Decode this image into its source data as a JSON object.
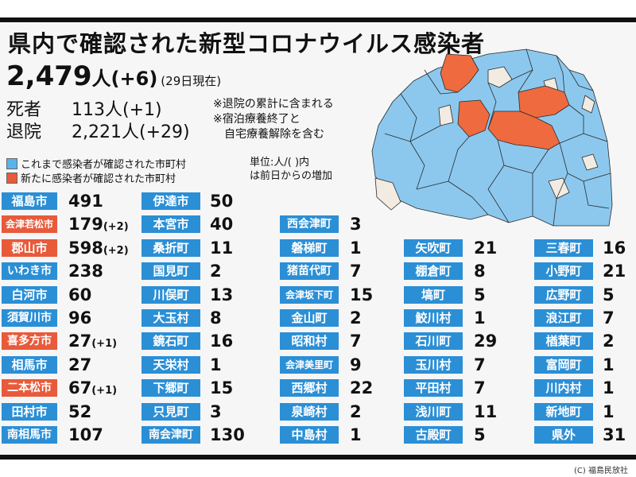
{
  "title": "県内で確認された新型コロナウイルス感染者",
  "total": {
    "count": "2,479",
    "unit": "人",
    "delta": "(+6)",
    "date": "(29日現在)"
  },
  "deaths": {
    "label": "死者",
    "value": "113人(+1)"
  },
  "discharged": {
    "label": "退院",
    "value": "2,221人(+29)"
  },
  "notes": [
    "※退院の累計に含まれる",
    "※宿泊療養終了と",
    "　自宅療養解除を含む"
  ],
  "legend": [
    {
      "label": "これまで感染者が確認された市町村",
      "color": "#5bb3ea"
    },
    {
      "label": "新たに感染者が確認された市町村",
      "color": "#e85a3a"
    }
  ],
  "unit_note": [
    "単位:人/( )内",
    "は前日からの増加"
  ],
  "columns": [
    [
      {
        "name": "福島市",
        "value": "491",
        "color": "blue"
      },
      {
        "name": "会津若松市",
        "value": "179",
        "delta": "(+2)",
        "color": "red"
      },
      {
        "name": "郡山市",
        "value": "598",
        "delta": "(+2)",
        "color": "red"
      },
      {
        "name": "いわき市",
        "value": "238",
        "color": "blue"
      },
      {
        "name": "白河市",
        "value": "60",
        "color": "blue"
      },
      {
        "name": "須賀川市",
        "value": "96",
        "color": "blue"
      },
      {
        "name": "喜多方市",
        "value": "27",
        "delta": "(+1)",
        "color": "red"
      },
      {
        "name": "相馬市",
        "value": "27",
        "color": "blue"
      },
      {
        "name": "二本松市",
        "value": "67",
        "delta": "(+1)",
        "color": "red"
      },
      {
        "name": "田村市",
        "value": "52",
        "color": "blue"
      },
      {
        "name": "南相馬市",
        "value": "107",
        "color": "blue"
      }
    ],
    [
      {
        "name": "伊達市",
        "value": "50",
        "color": "blue"
      },
      {
        "name": "本宮市",
        "value": "40",
        "color": "blue"
      },
      {
        "name": "桑折町",
        "value": "11",
        "color": "blue"
      },
      {
        "name": "国見町",
        "value": "2",
        "color": "blue"
      },
      {
        "name": "川俣町",
        "value": "13",
        "color": "blue"
      },
      {
        "name": "大玉村",
        "value": "8",
        "color": "blue"
      },
      {
        "name": "鏡石町",
        "value": "16",
        "color": "blue"
      },
      {
        "name": "天栄村",
        "value": "1",
        "color": "blue"
      },
      {
        "name": "下郷町",
        "value": "15",
        "color": "blue"
      },
      {
        "name": "只見町",
        "value": "3",
        "color": "blue"
      },
      {
        "name": "南会津町",
        "value": "130",
        "color": "blue"
      }
    ],
    [
      {
        "name": "西会津町",
        "value": "3",
        "color": "blue"
      },
      {
        "name": "磐梯町",
        "value": "1",
        "color": "blue"
      },
      {
        "name": "猪苗代町",
        "value": "7",
        "color": "blue"
      },
      {
        "name": "会津坂下町",
        "value": "15",
        "color": "blue"
      },
      {
        "name": "金山町",
        "value": "2",
        "color": "blue"
      },
      {
        "name": "昭和村",
        "value": "7",
        "color": "blue"
      },
      {
        "name": "会津美里町",
        "value": "9",
        "color": "blue"
      },
      {
        "name": "西郷村",
        "value": "22",
        "color": "blue"
      },
      {
        "name": "泉崎村",
        "value": "2",
        "color": "blue"
      },
      {
        "name": "中島村",
        "value": "1",
        "color": "blue"
      }
    ],
    [
      {
        "name": "矢吹町",
        "value": "21",
        "color": "blue"
      },
      {
        "name": "棚倉町",
        "value": "8",
        "color": "blue"
      },
      {
        "name": "塙町",
        "value": "5",
        "color": "blue"
      },
      {
        "name": "鮫川村",
        "value": "1",
        "color": "blue"
      },
      {
        "name": "石川町",
        "value": "29",
        "color": "blue"
      },
      {
        "name": "玉川村",
        "value": "7",
        "color": "blue"
      },
      {
        "name": "平田村",
        "value": "7",
        "color": "blue"
      },
      {
        "name": "浅川町",
        "value": "11",
        "color": "blue"
      },
      {
        "name": "古殿町",
        "value": "5",
        "color": "blue"
      }
    ],
    [
      {
        "name": "三春町",
        "value": "16",
        "color": "blue"
      },
      {
        "name": "小野町",
        "value": "21",
        "color": "blue"
      },
      {
        "name": "広野町",
        "value": "5",
        "color": "blue"
      },
      {
        "name": "浪江町",
        "value": "7",
        "color": "blue"
      },
      {
        "name": "楢葉町",
        "value": "2",
        "color": "blue"
      },
      {
        "name": "富岡町",
        "value": "1",
        "color": "blue"
      },
      {
        "name": "川内村",
        "value": "1",
        "color": "blue"
      },
      {
        "name": "新地町",
        "value": "1",
        "color": "blue"
      },
      {
        "name": "県外",
        "value": "31",
        "color": "blue"
      }
    ]
  ],
  "credit": "(C) 福島民放社",
  "colors": {
    "blue_label": "#2b8fd6",
    "red_label": "#e85a3a",
    "map_blue": "#8cc8ee",
    "map_red": "#ef6a3f",
    "map_none": "#f2ebe1"
  }
}
